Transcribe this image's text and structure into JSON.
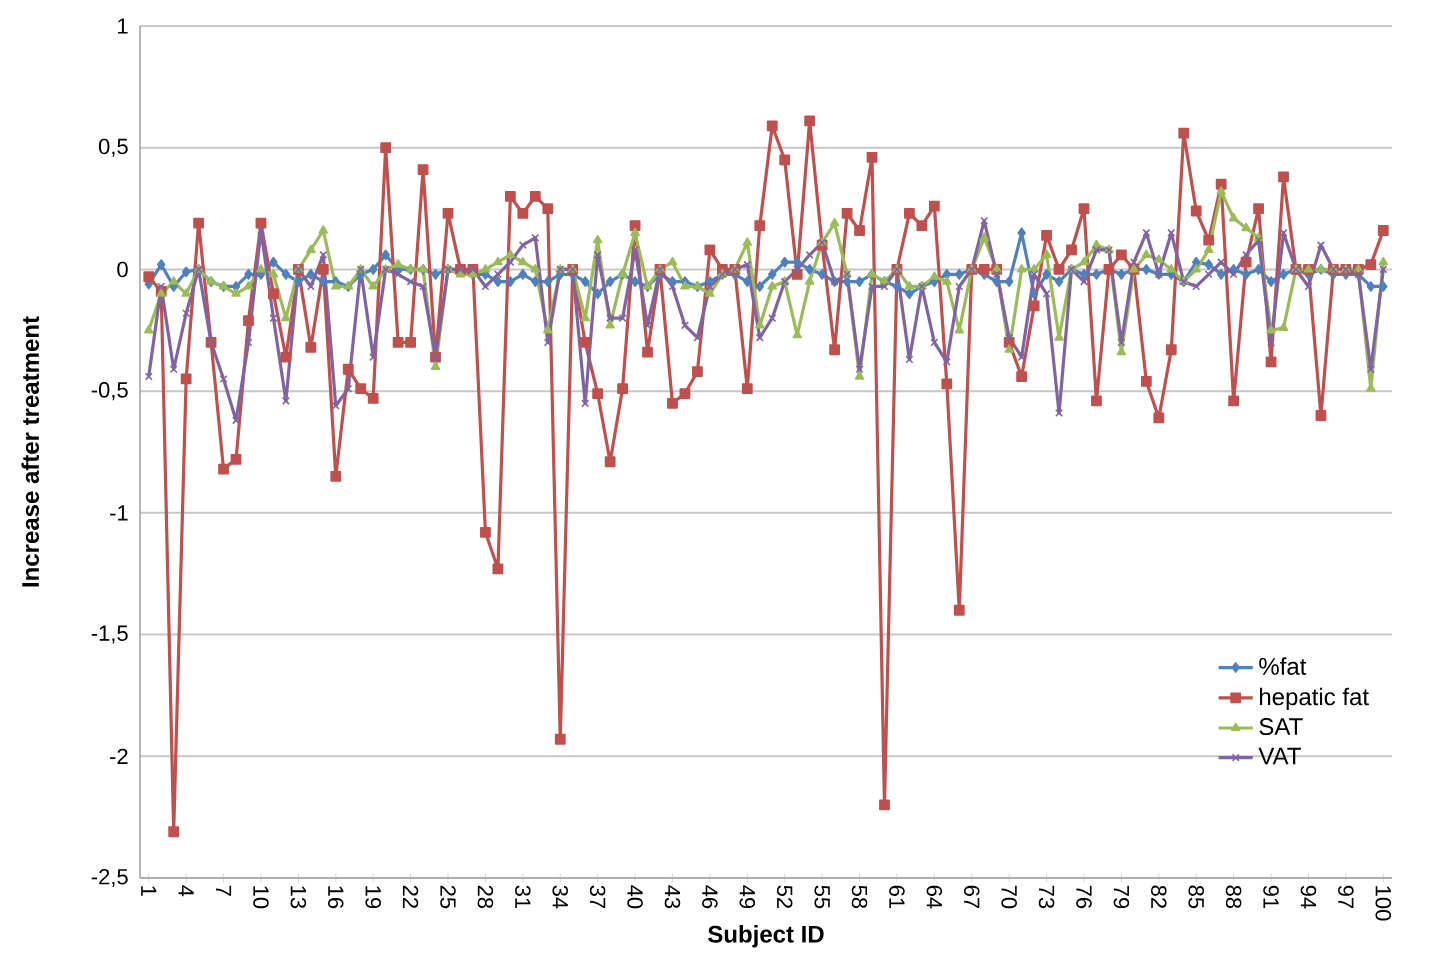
{
  "chart_data": {
    "type": "line",
    "xlabel": "Subject ID",
    "ylabel": "Increase after treatment",
    "categories": [
      "1",
      null,
      null,
      "4",
      null,
      null,
      "7",
      null,
      null,
      "10",
      null,
      null,
      "13",
      null,
      null,
      "16",
      null,
      null,
      "19",
      null,
      null,
      "22",
      null,
      null,
      "25",
      null,
      null,
      "28",
      null,
      null,
      "31",
      null,
      null,
      "34",
      null,
      null,
      "37",
      null,
      null,
      "40",
      null,
      null,
      "43",
      null,
      null,
      "46",
      null,
      null,
      "49",
      null,
      null,
      "52",
      null,
      null,
      "55",
      null,
      null,
      "58",
      null,
      null,
      "61",
      null,
      null,
      "64",
      null,
      null,
      "67",
      null,
      null,
      "70",
      null,
      null,
      "73",
      null,
      null,
      "76",
      null,
      null,
      "79",
      null,
      null,
      "82",
      null,
      null,
      "85",
      null,
      null,
      "88",
      null,
      null,
      "91",
      null,
      null,
      "94",
      null,
      null,
      "97",
      null,
      null,
      "100"
    ],
    "ylim": [
      -2.5,
      1
    ],
    "yticks": [
      1,
      {
        "value": 0.5,
        "label": "0,5"
      },
      0,
      {
        "value": -0.5,
        "label": "-0,5"
      },
      -1,
      {
        "value": -1.5,
        "label": "-1,5"
      },
      -2,
      {
        "value": -2.5,
        "label": "-2,5"
      }
    ],
    "grid": "y",
    "legend": "bottom right",
    "line_style": "solid",
    "series": [
      {
        "name": "%fat",
        "color": "#4f81bd",
        "marker": "diamond",
        "values": [
          -0.06,
          0.02,
          -0.07,
          -0.01,
          0,
          -0.05,
          -0.07,
          -0.07,
          -0.02,
          -0.02,
          0.03,
          -0.02,
          -0.05,
          -0.02,
          -0.05,
          -0.05,
          -0.07,
          -0.02,
          0,
          0.06,
          0,
          0,
          0,
          -0.02,
          0,
          0,
          -0.02,
          -0.02,
          -0.05,
          -0.05,
          -0.02,
          -0.05,
          -0.05,
          -0.02,
          -0.02,
          -0.05,
          -0.1,
          -0.05,
          -0.02,
          -0.05,
          -0.07,
          -0.02,
          -0.05,
          -0.05,
          -0.07,
          -0.05,
          -0.02,
          -0.02,
          -0.05,
          -0.07,
          -0.02,
          0.03,
          0.03,
          0,
          -0.02,
          -0.05,
          -0.05,
          -0.05,
          -0.02,
          -0.05,
          -0.07,
          -0.1,
          -0.07,
          -0.05,
          -0.02,
          -0.02,
          0,
          -0.02,
          -0.05,
          -0.05,
          0.15,
          -0.1,
          -0.02,
          -0.05,
          0,
          -0.02,
          -0.02,
          0,
          -0.02,
          0,
          0,
          -0.02,
          -0.02,
          -0.05,
          0.03,
          0.02,
          -0.02,
          0,
          -0.02,
          0,
          -0.05,
          -0.02,
          0,
          -0.02,
          0,
          -0.02,
          -0.02,
          -0.02,
          -0.07,
          -0.07
        ]
      },
      {
        "name": "hepatic fat",
        "color": "#c0504d",
        "marker": "square",
        "values": [
          -0.03,
          -0.09,
          -2.31,
          -0.45,
          0.19,
          -0.3,
          -0.82,
          -0.78,
          -0.21,
          0.19,
          -0.1,
          -0.36,
          0,
          -0.32,
          0,
          -0.85,
          -0.41,
          -0.49,
          -0.53,
          0.5,
          -0.3,
          -0.3,
          0.41,
          -0.36,
          0.23,
          0,
          0,
          -1.08,
          -1.23,
          0.3,
          0.23,
          0.3,
          0.25,
          -1.93,
          0,
          -0.3,
          -0.51,
          -0.79,
          -0.49,
          0.18,
          -0.34,
          0,
          -0.55,
          -0.51,
          -0.42,
          0.08,
          0,
          0,
          -0.49,
          0.18,
          0.59,
          0.45,
          -0.02,
          0.61,
          0.1,
          -0.33,
          0.23,
          0.16,
          0.46,
          -2.2,
          0,
          0.23,
          0.18,
          0.26,
          -0.47,
          -1.4,
          0,
          0,
          0,
          -0.3,
          -0.44,
          -0.15,
          0.14,
          0,
          0.08,
          0.25,
          -0.54,
          0,
          0.06,
          0,
          -0.46,
          -0.61,
          -0.33,
          0.56,
          0.24,
          0.12,
          0.35,
          -0.54,
          0.03,
          0.25,
          -0.38,
          0.38,
          0,
          0,
          -0.6,
          0,
          0,
          0,
          0.02,
          0.16
        ]
      },
      {
        "name": "SAT",
        "color": "#9bbb59",
        "marker": "triangle",
        "values": [
          -0.25,
          -0.1,
          -0.05,
          -0.1,
          0,
          -0.05,
          -0.07,
          -0.1,
          -0.07,
          0,
          -0.02,
          -0.2,
          0,
          0.08,
          0.16,
          -0.07,
          -0.07,
          0,
          -0.07,
          0,
          0.02,
          0,
          0,
          -0.4,
          0,
          -0.02,
          -0.02,
          0,
          0.03,
          0.06,
          0.03,
          0,
          -0.25,
          0,
          0,
          -0.2,
          0.12,
          -0.23,
          -0.02,
          0.15,
          -0.07,
          0,
          0.03,
          -0.07,
          -0.07,
          -0.1,
          -0.02,
          0,
          0.11,
          -0.23,
          -0.07,
          -0.05,
          -0.27,
          -0.05,
          0.11,
          0.19,
          -0.02,
          -0.44,
          -0.02,
          -0.05,
          0,
          -0.07,
          -0.07,
          -0.03,
          -0.05,
          -0.25,
          0,
          0.13,
          0,
          -0.33,
          0,
          0,
          0.06,
          -0.28,
          0,
          0.03,
          0.1,
          0.08,
          -0.34,
          0,
          0.06,
          0.04,
          0,
          -0.05,
          0,
          0.08,
          0.32,
          0.21,
          0.17,
          0.13,
          -0.25,
          -0.24,
          0,
          0,
          0,
          0,
          0,
          0,
          -0.49,
          0.03
        ]
      },
      {
        "name": "VAT",
        "color": "#8064a2",
        "marker": "cross",
        "values": [
          -0.44,
          -0.07,
          -0.41,
          -0.18,
          0,
          -0.3,
          -0.45,
          -0.62,
          -0.3,
          0.16,
          -0.2,
          -0.54,
          0,
          -0.07,
          0.06,
          -0.56,
          -0.49,
          0,
          -0.36,
          0,
          -0.02,
          -0.05,
          -0.07,
          -0.36,
          0,
          0,
          0,
          -0.07,
          -0.02,
          0.03,
          0.1,
          0.13,
          -0.3,
          0,
          0,
          -0.55,
          0.06,
          -0.2,
          -0.2,
          0.08,
          -0.23,
          0,
          -0.07,
          -0.23,
          -0.28,
          -0.07,
          -0.02,
          0,
          0.02,
          -0.28,
          -0.2,
          -0.05,
          0,
          0.06,
          0.11,
          -0.05,
          -0.02,
          -0.41,
          -0.07,
          -0.07,
          0,
          -0.37,
          -0.07,
          -0.3,
          -0.38,
          -0.07,
          0,
          0.2,
          -0.02,
          -0.28,
          -0.36,
          -0.02,
          -0.1,
          -0.59,
          0,
          -0.05,
          0.08,
          0.08,
          -0.3,
          0.03,
          0.15,
          -0.02,
          0.15,
          -0.05,
          -0.07,
          -0.02,
          0.03,
          -0.02,
          0.06,
          0.12,
          -0.3,
          0.15,
          0,
          -0.07,
          0.1,
          0,
          0,
          -0.02,
          -0.41,
          0
        ]
      }
    ]
  }
}
